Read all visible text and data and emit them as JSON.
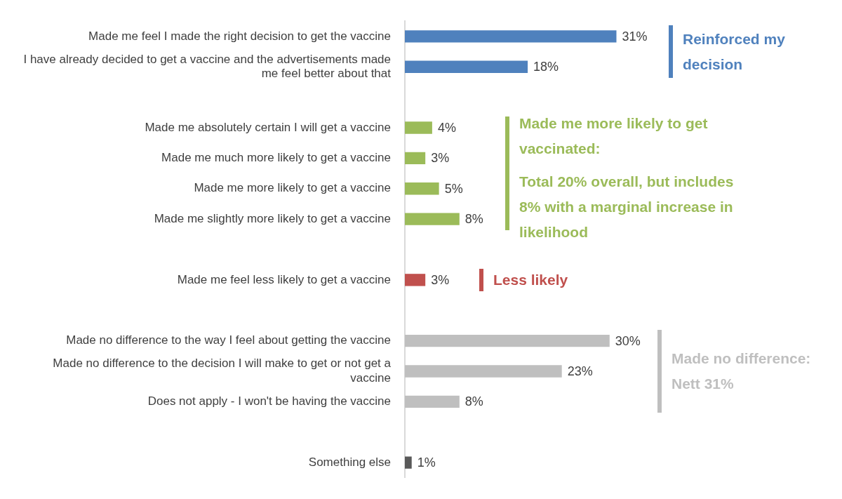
{
  "chart_data": {
    "type": "bar",
    "orientation": "horizontal",
    "categories": [
      "Made me feel I made the right decision to get the vaccine",
      "I have already decided to get a vaccine and the advertisements made me feel better about that",
      null,
      "Made me absolutely certain I will get a vaccine",
      "Made me much more likely to get a vaccine",
      "Made me more likely to get a vaccine",
      "Made me slightly more likely to get a vaccine",
      null,
      "Made me feel less likely to get a vaccine",
      null,
      "Made no difference to the way I feel about getting the vaccine",
      "Made no difference to the decision I will make to get or not get a vaccine",
      "Does not apply - I won't be having the vaccine",
      null,
      "Something else"
    ],
    "values": [
      31,
      18,
      null,
      4,
      3,
      5,
      8,
      null,
      3,
      null,
      30,
      23,
      8,
      null,
      1
    ],
    "value_labels": [
      "31%",
      "18%",
      null,
      "4%",
      "3%",
      "5%",
      "8%",
      null,
      "3%",
      null,
      "30%",
      "23%",
      "8%",
      null,
      "1%"
    ],
    "colors": [
      "#4f81bd",
      "#4f81bd",
      null,
      "#9bbb59",
      "#9bbb59",
      "#9bbb59",
      "#9bbb59",
      null,
      "#c0504d",
      null,
      "#bfbfbf",
      "#bfbfbf",
      "#bfbfbf",
      null,
      "#595959"
    ],
    "annotations": [
      "Reinforced my decision",
      "Made me more likely to get vaccinated:",
      "Total 20% overall, but includes 8% with a marginal increase in likelihood",
      "Less likely",
      "Made no difference: Nett 31%"
    ],
    "legend": false,
    "grid": false
  }
}
